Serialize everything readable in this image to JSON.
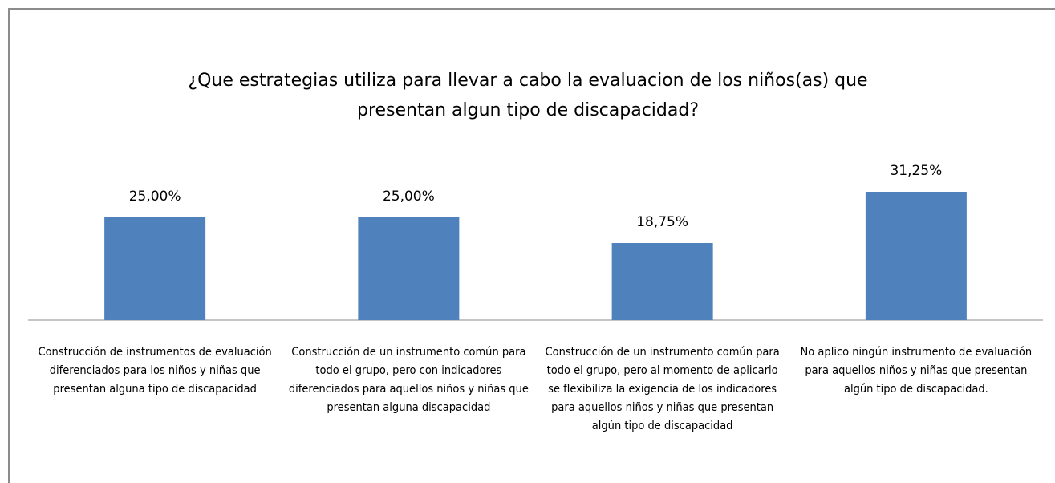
{
  "chart_data": {
    "type": "bar",
    "title": "¿Que estrategias utiliza  para llevar a cabo la evaluacion de los niños(as) que presentan algun tipo de discapacidad?",
    "categories": [
      "Construcción de instrumentos de evaluación diferenciados para los niños y niñas que presentan alguna tipo de discapacidad",
      "Construcción de un instrumento común para todo el grupo, pero con indicadores diferenciados para aquellos niños y niñas que presentan alguna discapacidad",
      "Construcción de un instrumento común para todo el grupo, pero al momento de aplicarlo se flexibiliza la exigencia de los indicadores para aquellos niños y niñas que presentan algún tipo de discapacidad",
      "No aplico ningún instrumento de evaluación para aquellos niños y niñas que presentan algún tipo de discapacidad."
    ],
    "values": [
      25,
      25,
      18.75,
      31.25
    ],
    "value_labels": [
      "25,00%",
      "25,00%",
      "18,75%",
      "31,25%"
    ],
    "color": "#4f81bd"
  }
}
